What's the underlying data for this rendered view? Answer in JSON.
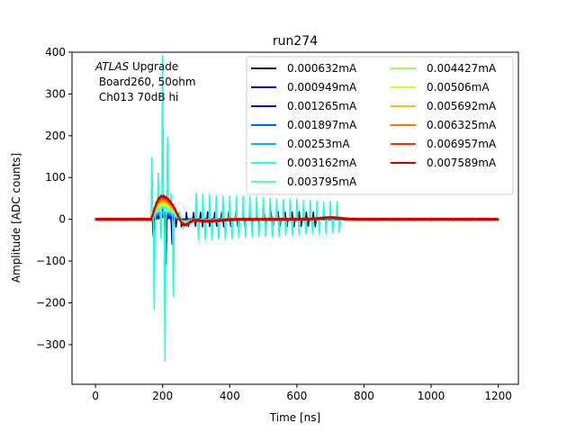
{
  "chart_data": {
    "type": "line",
    "title": "run274",
    "xlabel": "Time [ns]",
    "ylabel": "Amplitude [ADC counts]",
    "xlim": [
      -70,
      1260
    ],
    "ylim": [
      -395,
      400
    ],
    "x_ticks": [
      0,
      200,
      400,
      600,
      800,
      1000,
      1200
    ],
    "y_ticks": [
      -300,
      -200,
      -100,
      0,
      100,
      200,
      300,
      400
    ],
    "grid": false,
    "legend_position": "top-right",
    "annotation": {
      "line1_italic": "ATLAS",
      "line1_rest": " Upgrade",
      "line2": " Board260, 50ohm",
      "line3": " Ch013 70dB hi"
    },
    "series": [
      {
        "name": "0.000632mA",
        "color": "#00007f",
        "base_amplitude": 3,
        "spikes": [
          {
            "t": 172,
            "v": -40
          },
          {
            "t": 200,
            "v": 30
          },
          {
            "t": 210,
            "v": -110
          },
          {
            "t": 220,
            "v": 25
          },
          {
            "t": 228,
            "v": -60
          },
          {
            "t": 240,
            "v": -20
          }
        ]
      },
      {
        "name": "0.000949mA",
        "color": "#0000c8",
        "base_amplitude": 6,
        "spikes": []
      },
      {
        "name": "0.001265mA",
        "color": "#0010ff",
        "base_amplitude": 9,
        "spikes": []
      },
      {
        "name": "0.001897mA",
        "color": "#0060ff",
        "base_amplitude": 14,
        "spikes": []
      },
      {
        "name": "0.00253mA",
        "color": "#00b0ff",
        "base_amplitude": 18,
        "spikes": []
      },
      {
        "name": "0.003162mA",
        "color": "#1cffdb",
        "base_amplitude": 22,
        "spikes": [
          {
            "t": 168,
            "v": 145
          },
          {
            "t": 175,
            "v": -225
          },
          {
            "t": 187,
            "v": 90
          },
          {
            "t": 195,
            "v": -70
          },
          {
            "t": 200,
            "v": 370
          },
          {
            "t": 207,
            "v": -360
          },
          {
            "t": 215,
            "v": 175
          },
          {
            "t": 225,
            "v": 45
          },
          {
            "t": 232,
            "v": -195
          },
          {
            "t": 250,
            "v": 15
          },
          {
            "t": 262,
            "v": -15
          }
        ]
      },
      {
        "name": "0.003795mA",
        "color": "#59ff9e",
        "base_amplitude": 28,
        "spikes": []
      },
      {
        "name": "0.004427mA",
        "color": "#9eff59",
        "base_amplitude": 33,
        "spikes": []
      },
      {
        "name": "0.00506mA",
        "color": "#dbff1c",
        "base_amplitude": 38,
        "spikes": []
      },
      {
        "name": "0.005692mA",
        "color": "#ffc000",
        "base_amplitude": 42,
        "spikes": []
      },
      {
        "name": "0.006325mA",
        "color": "#ff7100",
        "base_amplitude": 47,
        "spikes": []
      },
      {
        "name": "0.006957mA",
        "color": "#ff2a00",
        "base_amplitude": 52,
        "spikes": []
      },
      {
        "name": "0.007589mA",
        "color": "#c80000",
        "base_amplitude": 56,
        "spikes": []
      }
    ]
  }
}
